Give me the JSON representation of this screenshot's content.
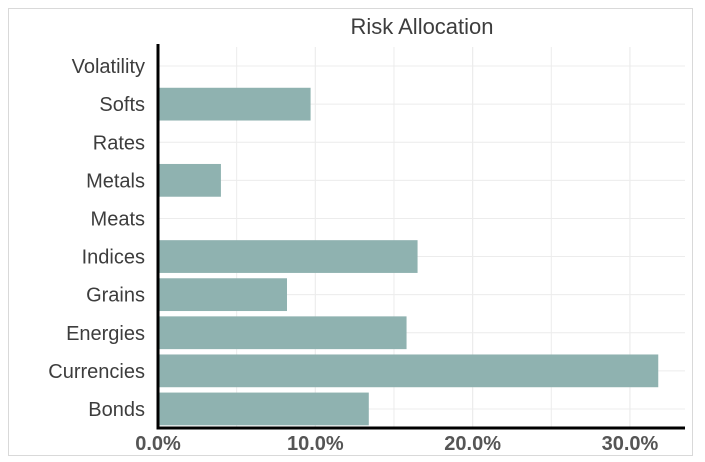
{
  "chart_data": {
    "type": "bar",
    "orientation": "horizontal",
    "title": "Risk Allocation",
    "xlabel": "",
    "ylabel": "",
    "categories": [
      "Bonds",
      "Currencies",
      "Energies",
      "Grains",
      "Indices",
      "Meats",
      "Metals",
      "Rates",
      "Softs",
      "Volatility"
    ],
    "values": [
      13.4,
      31.8,
      15.8,
      8.2,
      16.5,
      0.0,
      4.0,
      0.0,
      9.7,
      0.0
    ],
    "xlim": [
      0,
      33.5
    ],
    "xticks": [
      0,
      10,
      20,
      30
    ],
    "xtick_labels": [
      "0.0%",
      "10.0%",
      "20.0%",
      "30.0%"
    ],
    "grid": true,
    "legend": "none",
    "bar_color": "#8fb2b0",
    "grid_color": "#ececec",
    "axis_color": "#000000"
  }
}
